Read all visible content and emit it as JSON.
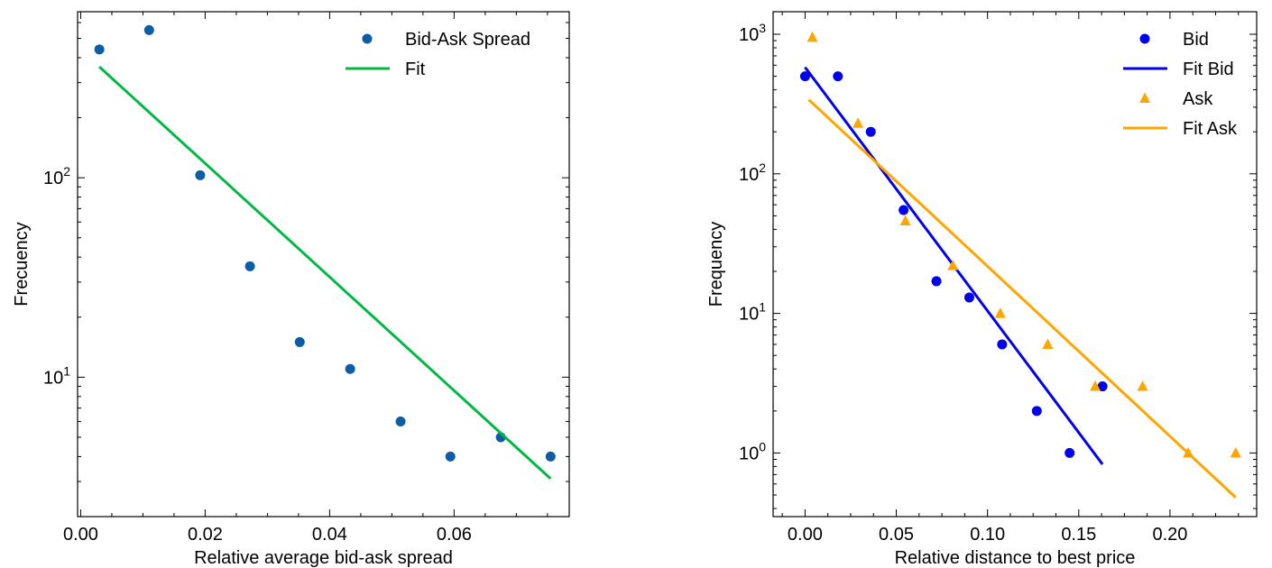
{
  "chart_data": [
    {
      "type": "scatter",
      "xlabel": "Relative average bid-ask spread",
      "ylabel": "Frecuency",
      "yscale": "log",
      "xlim": [
        -0.0005,
        0.0785
      ],
      "ylim": [
        2.0,
        680
      ],
      "xticks": [
        0.0,
        0.02,
        0.04,
        0.06
      ],
      "xtick_labels": [
        "0.00",
        "0.02",
        "0.04",
        "0.06"
      ],
      "yticks": [
        10,
        100
      ],
      "ytick_labels": [
        {
          "base": "10",
          "exp": "1"
        },
        {
          "base": "10",
          "exp": "2"
        }
      ],
      "legend_position": "top-right",
      "series": [
        {
          "name": "Bid-Ask Spread",
          "kind": "scatter",
          "marker": "circle",
          "color": "#0C5DA5",
          "x": [
            0.003,
            0.011,
            0.0192,
            0.0272,
            0.0352,
            0.0433,
            0.0514,
            0.0594,
            0.0675,
            0.0755
          ],
          "y": [
            440,
            550,
            103,
            36,
            15,
            11,
            6,
            4,
            5,
            4
          ]
        },
        {
          "name": "Fit",
          "kind": "line",
          "color": "#00B945",
          "x": [
            0.003,
            0.0755
          ],
          "y": [
            360,
            3.1
          ]
        }
      ]
    },
    {
      "type": "scatter",
      "xlabel": "Relative distance to best price",
      "ylabel": "Frequency",
      "yscale": "log",
      "xlim": [
        -0.0175,
        0.2475
      ],
      "ylim": [
        0.35,
        1450
      ],
      "xticks": [
        0.0,
        0.05,
        0.1,
        0.15,
        0.2
      ],
      "xtick_labels": [
        "0.00",
        "0.05",
        "0.10",
        "0.15",
        "0.20"
      ],
      "yticks": [
        1,
        10,
        100,
        1000
      ],
      "ytick_labels": [
        {
          "base": "10",
          "exp": "0"
        },
        {
          "base": "10",
          "exp": "1"
        },
        {
          "base": "10",
          "exp": "2"
        },
        {
          "base": "10",
          "exp": "3"
        }
      ],
      "legend_position": "top-right",
      "series": [
        {
          "name": "Bid",
          "kind": "scatter",
          "marker": "circle",
          "color": "#0000EE",
          "x": [
            0.0,
            0.018,
            0.036,
            0.054,
            0.072,
            0.09,
            0.108,
            0.127,
            0.145,
            0.163
          ],
          "y": [
            500,
            500,
            200,
            55,
            17,
            13,
            6,
            2,
            1,
            3
          ]
        },
        {
          "name": "Fit Bid",
          "kind": "line",
          "color": "#0000EE",
          "x": [
            0.0,
            0.163
          ],
          "y": [
            580,
            0.83
          ]
        },
        {
          "name": "Ask",
          "kind": "scatter",
          "marker": "triangle",
          "color": "#FFA500",
          "x": [
            0.004,
            0.029,
            0.055,
            0.081,
            0.107,
            0.133,
            0.159,
            0.185,
            0.21,
            0.236
          ],
          "y": [
            950,
            230,
            46,
            22,
            10,
            6,
            3,
            3,
            1,
            1
          ]
        },
        {
          "name": "Fit Ask",
          "kind": "line",
          "color": "#FFA500",
          "x": [
            0.002,
            0.236
          ],
          "y": [
            340,
            0.48
          ]
        }
      ]
    }
  ]
}
